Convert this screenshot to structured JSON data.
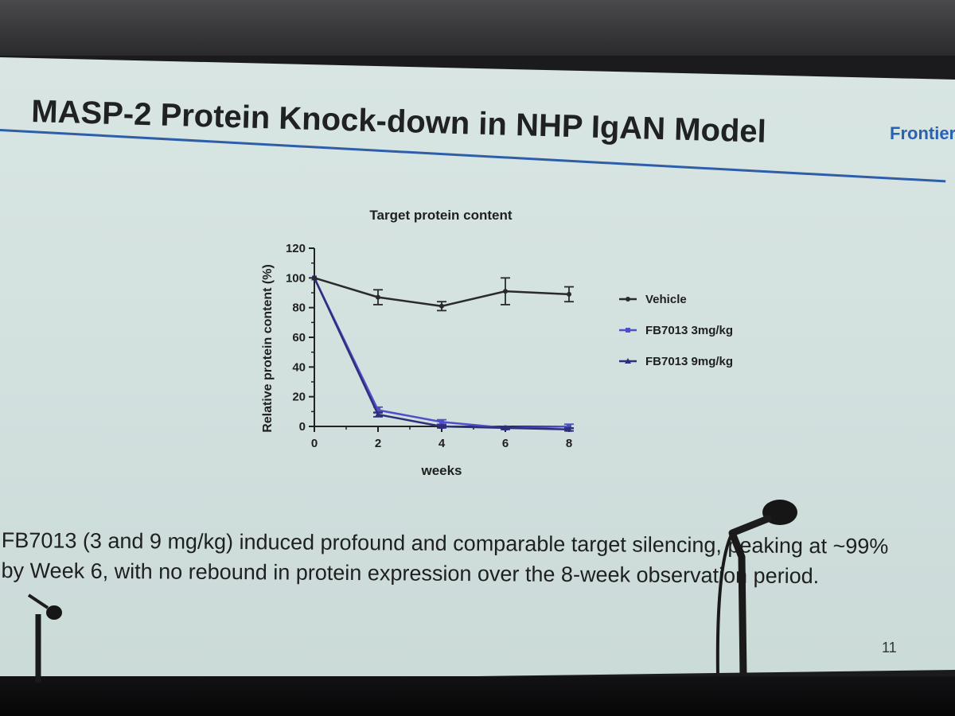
{
  "slide": {
    "title": "MASP-2 Protein Knock-down in NHP IgAN Model",
    "brand": "Frontier",
    "caption_line1": "FB7013 (3 and 9 mg/kg) induced profound and comparable target silencing, peaking at ~99%",
    "caption_line2": "by Week 6, with no rebound in protein expression over the 8-week observation period.",
    "page_number": "11",
    "colors": {
      "background": "#d6e3e1",
      "title_rule": "#2f5ea8",
      "brand": "#2a62b2"
    }
  },
  "chart_data": {
    "type": "line",
    "title": "Target protein content",
    "xlabel": "weeks",
    "ylabel": "Relative protein content (%)",
    "x": [
      0,
      2,
      4,
      6,
      8
    ],
    "xticks": [
      0,
      2,
      4,
      6,
      8
    ],
    "yticks": [
      0,
      20,
      40,
      60,
      80,
      100,
      120
    ],
    "xlim": [
      0,
      8
    ],
    "ylim": [
      0,
      120
    ],
    "grid": false,
    "legend_position": "right",
    "series": [
      {
        "name": "Vehicle",
        "values": [
          100,
          87,
          81,
          91,
          89
        ],
        "errors": [
          0,
          5,
          3,
          9,
          5
        ],
        "color": "#2a2a2a",
        "marker": "circle"
      },
      {
        "name": "FB7013 3mg/kg",
        "values": [
          100,
          11,
          3,
          -1,
          0
        ],
        "errors": [
          0,
          2,
          1.5,
          1,
          1.5
        ],
        "color": "#4f4fc8",
        "marker": "square"
      },
      {
        "name": "FB7013 9mg/kg",
        "values": [
          100,
          8,
          0,
          -1,
          -2
        ],
        "errors": [
          0,
          1.5,
          1,
          1,
          1
        ],
        "color": "#2e2e7a",
        "marker": "triangle"
      }
    ]
  }
}
